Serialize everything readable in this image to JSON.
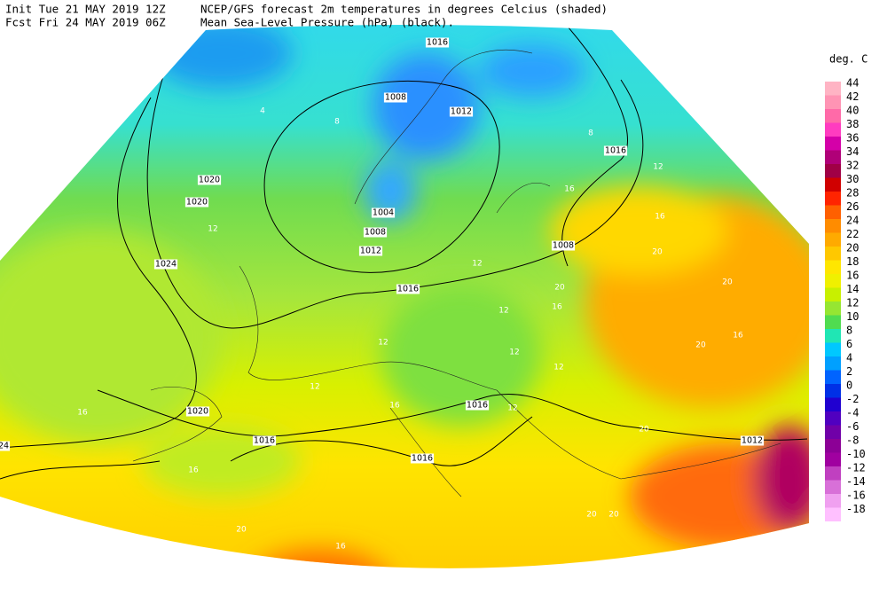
{
  "header": {
    "init": "Init  Tue 21 MAY 2019 12Z",
    "fcst": "Fcst Fri 24 MAY 2019 06Z",
    "title": "NCEP/GFS forecast 2m temperatures in degrees Celcius (shaded)",
    "subtitle": "Mean Sea-Level Pressure (hPa) (black)."
  },
  "colorbar": {
    "unit": "deg. C",
    "levels": [
      {
        "label": "44",
        "color": "#ffb4c4"
      },
      {
        "label": "42",
        "color": "#ff94b4"
      },
      {
        "label": "40",
        "color": "#ff6aa8"
      },
      {
        "label": "38",
        "color": "#ff3cc0"
      },
      {
        "label": "36",
        "color": "#d400a8"
      },
      {
        "label": "34",
        "color": "#b00078"
      },
      {
        "label": "32",
        "color": "#a00046"
      },
      {
        "label": "30",
        "color": "#d00000"
      },
      {
        "label": "28",
        "color": "#ff2400"
      },
      {
        "label": "26",
        "color": "#ff6000"
      },
      {
        "label": "24",
        "color": "#ff8c00"
      },
      {
        "label": "22",
        "color": "#ffaa00"
      },
      {
        "label": "20",
        "color": "#ffc800"
      },
      {
        "label": "18",
        "color": "#ffe600"
      },
      {
        "label": "16",
        "color": "#f0f000"
      },
      {
        "label": "14",
        "color": "#c8f000"
      },
      {
        "label": "12",
        "color": "#96e632"
      },
      {
        "label": "10",
        "color": "#50dc50"
      },
      {
        "label": "8",
        "color": "#20e6b4"
      },
      {
        "label": "6",
        "color": "#00c8ff"
      },
      {
        "label": "4",
        "color": "#00a0ff"
      },
      {
        "label": "2",
        "color": "#0064ff"
      },
      {
        "label": "0",
        "color": "#0030e6"
      },
      {
        "label": "-2",
        "color": "#2000d0"
      },
      {
        "label": "-4",
        "color": "#5000c0"
      },
      {
        "label": "-6",
        "color": "#7000a8"
      },
      {
        "label": "-8",
        "color": "#8c0096"
      },
      {
        "label": "-10",
        "color": "#a000a0"
      },
      {
        "label": "-12",
        "color": "#c040c0"
      },
      {
        "label": "-14",
        "color": "#d870d8"
      },
      {
        "label": "-16",
        "color": "#f0a0f0"
      },
      {
        "label": "-18",
        "color": "#ffc0ff"
      }
    ]
  },
  "isobar_labels": [
    "1016",
    "1008",
    "1012",
    "1016",
    "1020",
    "1020",
    "1024",
    "1004",
    "1008",
    "1012",
    "1008",
    "1016",
    "1020",
    "1016",
    "1016",
    "1016",
    "1012",
    "24"
  ],
  "temperature_labels": [
    "4",
    "8",
    "8",
    "12",
    "16",
    "16",
    "12",
    "20",
    "12",
    "20",
    "16",
    "20",
    "12",
    "12",
    "16",
    "20",
    "12",
    "12",
    "12",
    "16",
    "16",
    "12",
    "20",
    "16",
    "20",
    "20",
    "20",
    "20",
    "16"
  ]
}
